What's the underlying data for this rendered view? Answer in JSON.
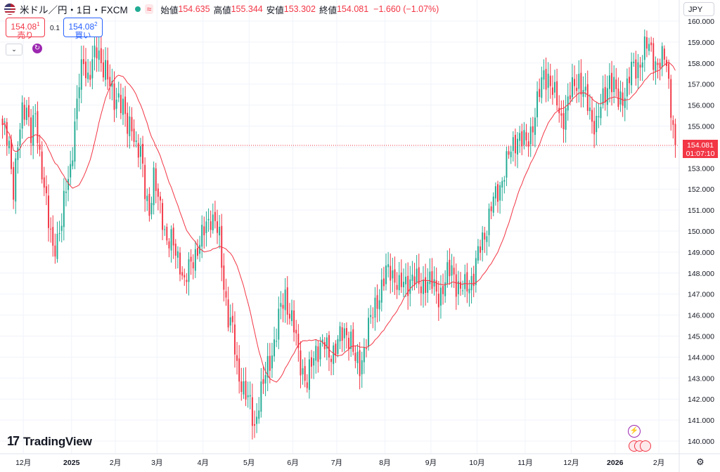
{
  "legend": {
    "symbol": "米ドル／円・1日・FXCM",
    "wave_icon": "≈",
    "open_label": "始値",
    "open": "154.635",
    "high_label": "高値",
    "high": "155.344",
    "low_label": "安値",
    "low": "153.302",
    "close_label": "終値",
    "close": "154.081",
    "change": "−1.660 (−1.07%)"
  },
  "trade": {
    "sell_price": "154.08",
    "sell_sup": "1",
    "sell_label": "売り",
    "buy_price": "154.08",
    "buy_sup": "2",
    "buy_label": "買い",
    "spread": "0.1"
  },
  "currency_button": "JPY",
  "price_tag": {
    "price": "154.081",
    "countdown": "01:07:10"
  },
  "logo": {
    "mark": "17",
    "text": "TradingView"
  },
  "icons": [
    "us-flag-icon",
    "chevron-down-icon",
    "refresh-icon",
    "lightning-icon",
    "us-flag-event-icon",
    "gear-icon"
  ],
  "colors": {
    "up": "#22ab94",
    "down": "#f23645",
    "ma": "#f23645",
    "grid": "#f0f3fa",
    "accent": "#2962ff"
  },
  "chart_data": {
    "type": "candlestick",
    "y_ticks": [
      "140.000",
      "141.000",
      "142.000",
      "143.000",
      "144.000",
      "145.000",
      "146.000",
      "147.000",
      "148.000",
      "149.000",
      "150.000",
      "151.000",
      "152.000",
      "153.000",
      "154.000",
      "155.000",
      "156.000",
      "157.000",
      "158.000",
      "159.000",
      "160.000"
    ],
    "x_ticks": [
      "12月",
      "2025",
      "2月",
      "3月",
      "4月",
      "5月",
      "6月",
      "7月",
      "8月",
      "9月",
      "10月",
      "11月",
      "12月",
      "2026",
      "2月"
    ],
    "ylim": [
      139.8,
      160.0
    ],
    "last_price": 154.081,
    "moving_average": "red line",
    "price_path": [
      [
        0,
        154.8
      ],
      [
        3,
        154.2
      ],
      [
        5,
        152.1
      ],
      [
        7,
        153.9
      ],
      [
        9,
        155.6
      ],
      [
        11,
        156.1
      ],
      [
        13,
        154.6
      ],
      [
        15,
        155.3
      ],
      [
        17,
        153.6
      ],
      [
        19,
        152.4
      ],
      [
        21,
        150.3
      ],
      [
        23,
        149.0
      ],
      [
        25,
        149.8
      ],
      [
        27,
        150.5
      ],
      [
        29,
        151.9
      ],
      [
        31,
        153.0
      ],
      [
        33,
        155.2
      ],
      [
        35,
        157.0
      ],
      [
        37,
        158.0
      ],
      [
        39,
        157.4
      ],
      [
        41,
        158.1
      ],
      [
        43,
        158.4
      ],
      [
        45,
        158.1
      ],
      [
        47,
        157.9
      ],
      [
        49,
        156.8
      ],
      [
        51,
        156.1
      ],
      [
        53,
        156.6
      ],
      [
        55,
        155.9
      ],
      [
        57,
        154.7
      ],
      [
        59,
        155.2
      ],
      [
        61,
        154.1
      ],
      [
        63,
        153.6
      ],
      [
        65,
        151.9
      ],
      [
        67,
        151.1
      ],
      [
        69,
        152.5
      ],
      [
        71,
        151.4
      ],
      [
        73,
        150.7
      ],
      [
        75,
        149.6
      ],
      [
        77,
        149.4
      ],
      [
        79,
        149.0
      ],
      [
        81,
        148.6
      ],
      [
        83,
        147.4
      ],
      [
        85,
        148.1
      ],
      [
        87,
        148.8
      ],
      [
        89,
        149.2
      ],
      [
        91,
        149.6
      ],
      [
        93,
        150.3
      ],
      [
        95,
        150.8
      ],
      [
        97,
        150.4
      ],
      [
        99,
        149.5
      ],
      [
        101,
        147.5
      ],
      [
        103,
        146.0
      ],
      [
        105,
        145.2
      ],
      [
        107,
        143.4
      ],
      [
        109,
        142.9
      ],
      [
        111,
        142.2
      ],
      [
        113,
        141.6
      ],
      [
        115,
        140.7
      ],
      [
        117,
        142.0
      ],
      [
        119,
        142.6
      ],
      [
        121,
        143.6
      ],
      [
        123,
        144.3
      ],
      [
        125,
        145.1
      ],
      [
        127,
        146.3
      ],
      [
        129,
        147.0
      ],
      [
        131,
        146.1
      ],
      [
        133,
        145.3
      ],
      [
        135,
        144.2
      ],
      [
        137,
        143.4
      ],
      [
        139,
        142.7
      ],
      [
        141,
        143.6
      ],
      [
        143,
        144.4
      ],
      [
        145,
        144.6
      ],
      [
        147,
        144.5
      ],
      [
        149,
        144.1
      ],
      [
        151,
        144.4
      ],
      [
        153,
        144.7
      ],
      [
        155,
        145.0
      ],
      [
        157,
        145.2
      ],
      [
        159,
        144.9
      ],
      [
        161,
        143.7
      ],
      [
        163,
        143.5
      ],
      [
        165,
        144.5
      ],
      [
        167,
        145.4
      ],
      [
        169,
        146.0
      ],
      [
        171,
        146.8
      ],
      [
        173,
        147.4
      ],
      [
        175,
        147.9
      ],
      [
        177,
        148.1
      ],
      [
        179,
        147.9
      ],
      [
        181,
        147.3
      ],
      [
        183,
        147.4
      ],
      [
        185,
        147.6
      ],
      [
        187,
        147.9
      ],
      [
        189,
        147.5
      ],
      [
        191,
        147.3
      ],
      [
        193,
        147.7
      ],
      [
        195,
        147.6
      ],
      [
        197,
        147.2
      ],
      [
        199,
        147.0
      ],
      [
        201,
        147.3
      ],
      [
        203,
        147.8
      ],
      [
        205,
        148.3
      ],
      [
        207,
        147.6
      ],
      [
        209,
        147.1
      ],
      [
        211,
        147.3
      ],
      [
        213,
        147.6
      ],
      [
        215,
        147.9
      ],
      [
        217,
        148.8
      ],
      [
        219,
        149.6
      ],
      [
        221,
        150.3
      ],
      [
        223,
        151.1
      ],
      [
        225,
        151.6
      ],
      [
        227,
        152.2
      ],
      [
        229,
        152.9
      ],
      [
        231,
        153.5
      ],
      [
        233,
        154.1
      ],
      [
        235,
        154.6
      ],
      [
        237,
        154.3
      ],
      [
        239,
        154.1
      ],
      [
        241,
        154.8
      ],
      [
        243,
        155.6
      ],
      [
        245,
        156.5
      ],
      [
        247,
        157.5
      ],
      [
        249,
        157.4
      ],
      [
        251,
        156.6
      ],
      [
        253,
        156.1
      ],
      [
        255,
        155.4
      ],
      [
        257,
        155.7
      ],
      [
        259,
        156.4
      ],
      [
        261,
        157.1
      ],
      [
        263,
        157.3
      ],
      [
        265,
        156.5
      ],
      [
        267,
        156.0
      ],
      [
        269,
        155.4
      ],
      [
        271,
        155.1
      ],
      [
        273,
        155.8
      ],
      [
        275,
        156.6
      ],
      [
        277,
        157.4
      ],
      [
        279,
        156.8
      ],
      [
        281,
        156.1
      ],
      [
        283,
        156.5
      ],
      [
        285,
        156.9
      ],
      [
        287,
        157.6
      ],
      [
        289,
        157.8
      ],
      [
        291,
        158.1
      ],
      [
        293,
        158.6
      ],
      [
        295,
        158.8
      ],
      [
        297,
        158.4
      ],
      [
        299,
        157.8
      ],
      [
        301,
        158.1
      ],
      [
        303,
        158.2
      ],
      [
        305,
        156.0
      ],
      [
        307,
        154.081
      ]
    ]
  }
}
